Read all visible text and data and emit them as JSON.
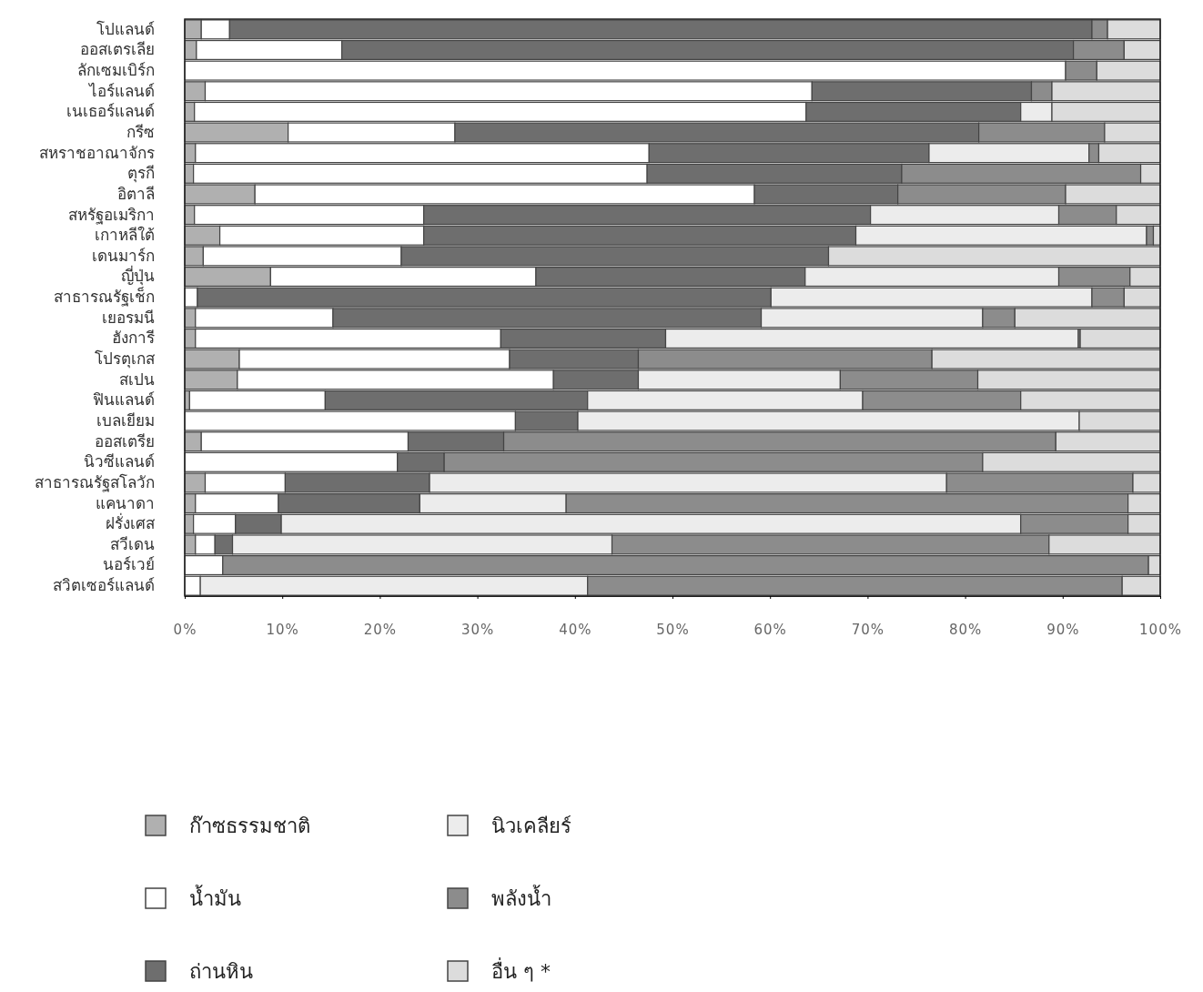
{
  "chart_data": {
    "type": "bar",
    "orientation": "horizontal",
    "stacked": true,
    "categories": [
      "โปแลนด์",
      "ออสเตรเลีย",
      "ลักเซมเบิร์ก",
      "ไอร์แลนด์",
      "เนเธอร์แลนด์",
      "กรีซ",
      "สหราชอาณาจักร",
      "ตุรกี",
      "อิตาลี",
      "สหรัฐอเมริกา",
      "เกาหลีใต้",
      "เดนมาร์ก",
      "ญี่ปุ่น",
      "สาธารณรัฐเช็ก",
      "เยอรมนี",
      "ฮังการี",
      "โปรตุเกส",
      "สเปน",
      "ฟินแลนด์",
      "เบลเยียม",
      "ออสเตรีย",
      "นิวซีแลนด์",
      "สาธารณรัฐสโลวัก",
      "แคนาดา",
      "ฝรั่งเศส",
      "สวีเดน",
      "นอร์เวย์",
      "สวิตเซอร์แลนด์"
    ],
    "series": [
      {
        "name": "ก๊าซธรรมชาติ",
        "color": "#b0b0b0",
        "values": [
          1.7,
          1.2,
          0,
          2.1,
          1.0,
          10.6,
          1.1,
          0.9,
          7.2,
          1.0,
          3.6,
          1.9,
          8.8,
          0,
          1.1,
          1.1,
          5.6,
          5.4,
          0.5,
          null,
          1.7,
          0,
          2.1,
          1.1,
          0.9,
          1.1,
          0,
          0
        ]
      },
      {
        "name": "น้ำมัน",
        "color": "#ffffff",
        "values": [
          2.9,
          14.9,
          90.3,
          62.2,
          62.7,
          17.1,
          46.5,
          46.5,
          51.2,
          23.5,
          20.9,
          20.3,
          27.2,
          1.3,
          14.1,
          31.3,
          27.7,
          32.4,
          13.9,
          33.9,
          21.2,
          21.8,
          8.2,
          8.5,
          4.3,
          2.0,
          3.9,
          1.6
        ]
      },
      {
        "name": "ถ่านหิน",
        "color": "#6e6e6e",
        "values": [
          88.4,
          75.0,
          0,
          22.5,
          22.0,
          53.7,
          28.7,
          26.1,
          14.7,
          45.8,
          44.3,
          43.8,
          27.6,
          58.8,
          43.9,
          16.9,
          13.2,
          8.7,
          26.9,
          6.4,
          9.8,
          4.8,
          14.8,
          14.5,
          4.7,
          1.8,
          0,
          0
        ]
      },
      {
        "name": "นิวเคลียร์",
        "color": "#ececec",
        "values": [
          0,
          0,
          0,
          0,
          3.2,
          0,
          16.4,
          0,
          0,
          19.3,
          29.8,
          0,
          26.0,
          32.9,
          22.7,
          42.3,
          0,
          20.7,
          28.2,
          51.4,
          0,
          0,
          53.0,
          15.0,
          75.8,
          38.9,
          0,
          39.7
        ]
      },
      {
        "name": "พลังน้ำ",
        "color": "#8c8c8c",
        "values": [
          1.6,
          5.2,
          3.2,
          2.1,
          0,
          12.9,
          1.0,
          24.5,
          17.2,
          5.9,
          0.7,
          0,
          7.3,
          3.3,
          3.3,
          0.2,
          30.1,
          14.1,
          16.2,
          0,
          56.6,
          55.2,
          19.1,
          57.6,
          11.0,
          44.8,
          94.9,
          54.8
        ]
      },
      {
        "name": "อื่น ๆ *",
        "color": "#dcdcdc",
        "values": [
          5.4,
          3.7,
          6.5,
          11.1,
          11.1,
          5.7,
          6.3,
          2.0,
          9.7,
          4.5,
          0.7,
          34.0,
          3.1,
          3.7,
          14.9,
          8.2,
          23.4,
          18.7,
          14.3,
          8.3,
          10.7,
          18.2,
          2.8,
          3.3,
          3.3,
          11.4,
          1.2,
          3.9
        ]
      }
    ],
    "xlim": [
      0,
      100
    ],
    "xticks": [
      {
        "value": 0,
        "label": "0%"
      },
      {
        "value": 10,
        "label": "10%"
      },
      {
        "value": 20,
        "label": "20%"
      },
      {
        "value": 30,
        "label": "30%"
      },
      {
        "value": 40,
        "label": "40%"
      },
      {
        "value": 50,
        "label": "50%"
      },
      {
        "value": 60,
        "label": "60%"
      },
      {
        "value": 70,
        "label": "70%"
      },
      {
        "value": 80,
        "label": "80%"
      },
      {
        "value": 90,
        "label": "90%"
      },
      {
        "value": 100,
        "label": "100%"
      }
    ],
    "legend": "bottom"
  }
}
